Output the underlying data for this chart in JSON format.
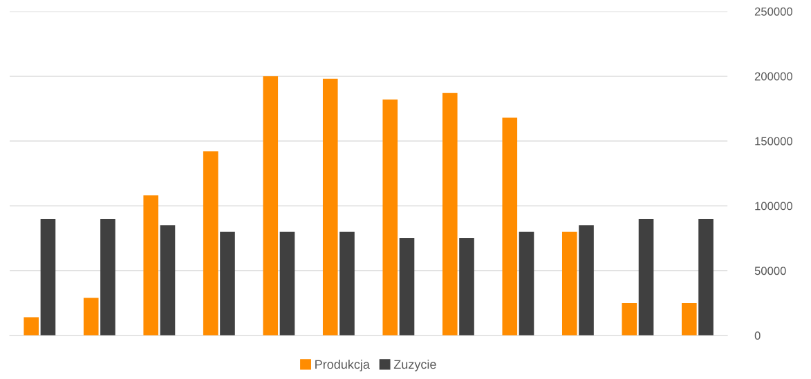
{
  "chart_data": {
    "type": "bar",
    "categories": [
      null,
      null,
      null,
      null,
      null,
      null,
      null,
      null,
      null,
      null,
      null,
      null
    ],
    "series": [
      {
        "name": "Produkcja",
        "color": "#ff8c00",
        "values": [
          14000,
          29000,
          108000,
          142000,
          200000,
          198000,
          182000,
          187000,
          168000,
          80000,
          25000,
          25000
        ]
      },
      {
        "name": "Zuzycie",
        "color": "#404040",
        "values": [
          90000,
          90000,
          85000,
          80000,
          80000,
          80000,
          75000,
          75000,
          80000,
          85000,
          90000,
          90000
        ]
      }
    ],
    "ylim": [
      0,
      250000
    ],
    "yticks": [
      0,
      50000,
      100000,
      150000,
      200000,
      250000
    ],
    "grid": "y",
    "legend": "bottom"
  }
}
